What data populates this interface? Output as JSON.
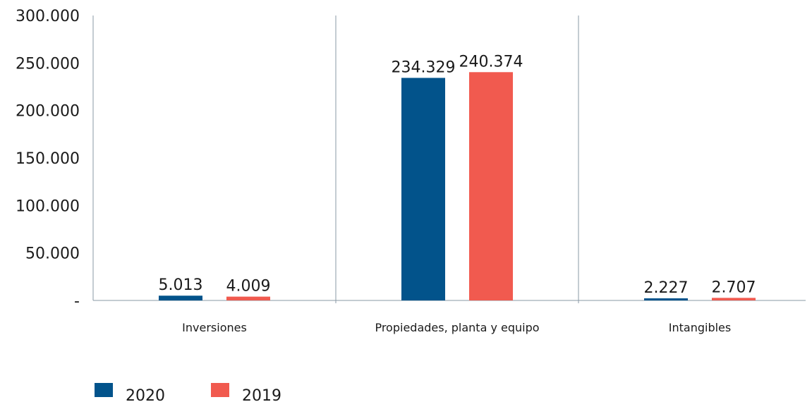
{
  "chart_data": {
    "type": "bar",
    "categories": [
      "Inversiones",
      "Propiedades, planta y equipo",
      "Intangibles"
    ],
    "series": [
      {
        "name": "2020",
        "values": [
          5013,
          234329,
          2227
        ],
        "labels": [
          "5.013",
          "234.329",
          "2.227"
        ],
        "color": "#02538b"
      },
      {
        "name": "2019",
        "values": [
          4009,
          240374,
          2707
        ],
        "labels": [
          "4.009",
          "240.374",
          "2.707"
        ],
        "color": "#f15a4f"
      }
    ],
    "ylim": [
      0,
      300000
    ],
    "yticks": [
      {
        "value": 0,
        "label": "-"
      },
      {
        "value": 50000,
        "label": "50.000"
      },
      {
        "value": 100000,
        "label": "100.000"
      },
      {
        "value": 150000,
        "label": "150.000"
      },
      {
        "value": 200000,
        "label": "200.000"
      },
      {
        "value": 250000,
        "label": "250.000"
      },
      {
        "value": 300000,
        "label": "300.000"
      }
    ],
    "title": "",
    "xlabel": "",
    "ylabel": "",
    "grid": false,
    "legend_position": "bottom-left"
  }
}
